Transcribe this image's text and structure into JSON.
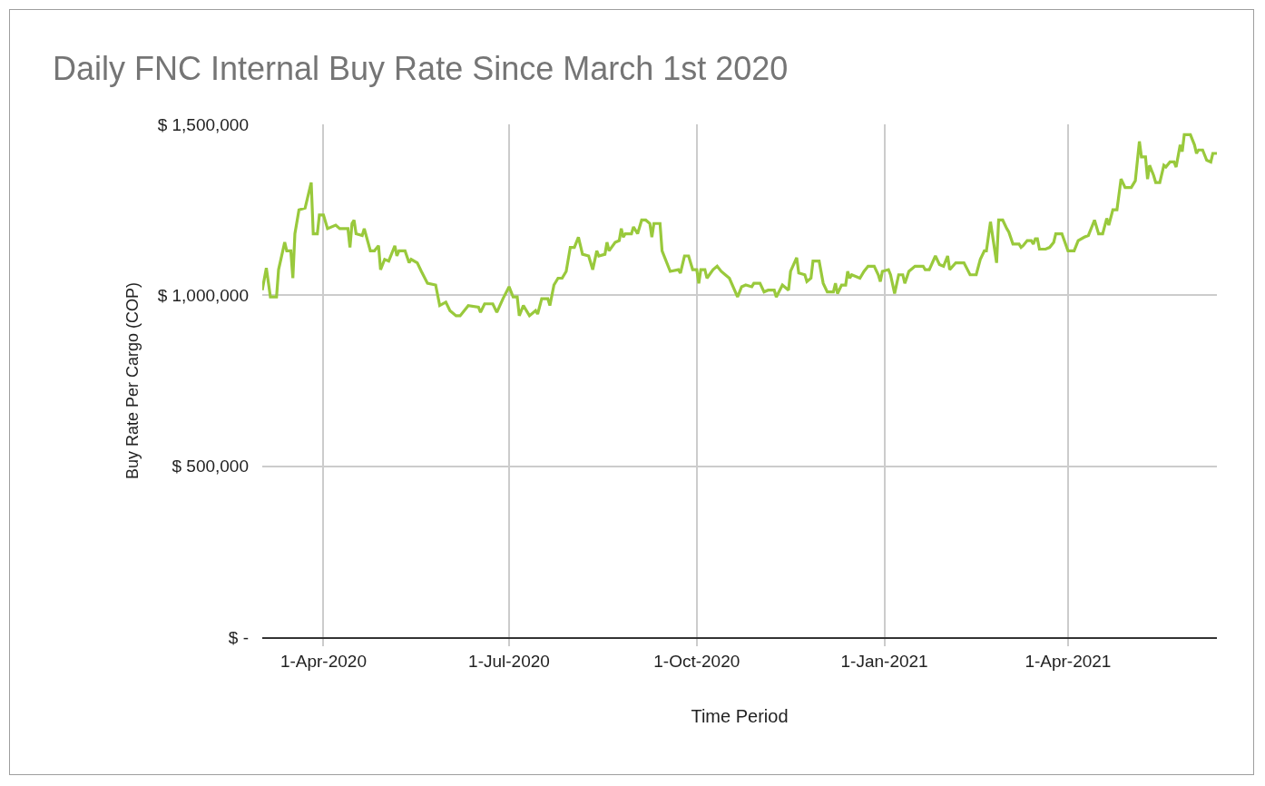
{
  "chart_data": {
    "type": "line",
    "title": "Daily FNC Internal Buy Rate Since March 1st 2020",
    "xlabel": "Time Period",
    "ylabel": "Buy Rate Per Cargo (COP)",
    "x": [
      "2020-03-02",
      "2020-03-04",
      "2020-03-06",
      "2020-03-09",
      "2020-03-10",
      "2020-03-13",
      "2020-03-14",
      "2020-03-16",
      "2020-03-17",
      "2020-03-18",
      "2020-03-20",
      "2020-03-23",
      "2020-03-26",
      "2020-03-27",
      "2020-03-29",
      "2020-03-30",
      "2020-04-01",
      "2020-04-03",
      "2020-04-07",
      "2020-04-09",
      "2020-04-13",
      "2020-04-14",
      "2020-04-15",
      "2020-04-16",
      "2020-04-17",
      "2020-04-20",
      "2020-04-21",
      "2020-04-24",
      "2020-04-26",
      "2020-04-28",
      "2020-04-29",
      "2020-05-01",
      "2020-05-03",
      "2020-05-06",
      "2020-05-07",
      "2020-05-08",
      "2020-05-11",
      "2020-05-13",
      "2020-05-14",
      "2020-05-17",
      "2020-05-19",
      "2020-05-22",
      "2020-05-26",
      "2020-05-28",
      "2020-05-31",
      "2020-06-02",
      "2020-06-05",
      "2020-06-07",
      "2020-06-11",
      "2020-06-16",
      "2020-06-17",
      "2020-06-19",
      "2020-06-23",
      "2020-06-25",
      "2020-06-28",
      "2020-07-01",
      "2020-07-03",
      "2020-07-05",
      "2020-07-06",
      "2020-07-08",
      "2020-07-11",
      "2020-07-14",
      "2020-07-15",
      "2020-07-17",
      "2020-07-20",
      "2020-07-21",
      "2020-07-23",
      "2020-07-25",
      "2020-07-27",
      "2020-07-29",
      "2020-07-31",
      "2020-08-02",
      "2020-08-04",
      "2020-08-06",
      "2020-08-09",
      "2020-08-11",
      "2020-08-13",
      "2020-08-14",
      "2020-08-17",
      "2020-08-18",
      "2020-08-19",
      "2020-08-22",
      "2020-08-24",
      "2020-08-25",
      "2020-08-26",
      "2020-08-27",
      "2020-08-30",
      "2020-08-31",
      "2020-09-02",
      "2020-09-04",
      "2020-09-06",
      "2020-09-08",
      "2020-09-09",
      "2020-09-10",
      "2020-09-13",
      "2020-09-14",
      "2020-09-18",
      "2020-09-22",
      "2020-09-23",
      "2020-09-25",
      "2020-09-27",
      "2020-09-29",
      "2020-10-01",
      "2020-10-02",
      "2020-10-03",
      "2020-10-05",
      "2020-10-06",
      "2020-10-09",
      "2020-10-11",
      "2020-10-13",
      "2020-10-15",
      "2020-10-17",
      "2020-10-21",
      "2020-10-23",
      "2020-10-25",
      "2020-10-28",
      "2020-10-29",
      "2020-11-01",
      "2020-11-03",
      "2020-11-05",
      "2020-11-08",
      "2020-11-09",
      "2020-11-12",
      "2020-11-15",
      "2020-11-16",
      "2020-11-19",
      "2020-11-20",
      "2020-11-23",
      "2020-11-24",
      "2020-11-26",
      "2020-11-27",
      "2020-11-30",
      "2020-12-02",
      "2020-12-04",
      "2020-12-07",
      "2020-12-08",
      "2020-12-09",
      "2020-12-11",
      "2020-12-13",
      "2020-12-14",
      "2020-12-15",
      "2020-12-16",
      "2020-12-20",
      "2020-12-22",
      "2020-12-24",
      "2020-12-27",
      "2020-12-29",
      "2020-12-30",
      "2020-12-31",
      "2021-01-03",
      "2021-01-04",
      "2021-01-06",
      "2021-01-08",
      "2021-01-10",
      "2021-01-11",
      "2021-01-13",
      "2021-01-16",
      "2021-01-20",
      "2021-01-21",
      "2021-01-23",
      "2021-01-26",
      "2021-01-28",
      "2021-01-30",
      "2021-02-01",
      "2021-02-02",
      "2021-02-05",
      "2021-02-09",
      "2021-02-12",
      "2021-02-15",
      "2021-02-17",
      "2021-02-19",
      "2021-02-20",
      "2021-02-22",
      "2021-02-25",
      "2021-02-26",
      "2021-02-28",
      "2021-03-02",
      "2021-03-03",
      "2021-03-05",
      "2021-03-08",
      "2021-03-09",
      "2021-03-10",
      "2021-03-12",
      "2021-03-14",
      "2021-03-15",
      "2021-03-16",
      "2021-03-17",
      "2021-03-18",
      "2021-03-21",
      "2021-03-23",
      "2021-03-25",
      "2021-03-26",
      "2021-03-29",
      "2021-04-01",
      "2021-04-04",
      "2021-04-06",
      "2021-04-09",
      "2021-04-11",
      "2021-04-14",
      "2021-04-16",
      "2021-04-18",
      "2021-04-20",
      "2021-04-21",
      "2021-04-23",
      "2021-04-25",
      "2021-04-27",
      "2021-04-29",
      "2021-05-02",
      "2021-05-04",
      "2021-05-06",
      "2021-05-07",
      "2021-05-09",
      "2021-05-10",
      "2021-05-11",
      "2021-05-13",
      "2021-05-14",
      "2021-05-16",
      "2021-05-18",
      "2021-05-19",
      "2021-05-21",
      "2021-05-23",
      "2021-05-24",
      "2021-05-26",
      "2021-05-27",
      "2021-05-28",
      "2021-05-31",
      "2021-06-02",
      "2021-06-03",
      "2021-06-04",
      "2021-06-06",
      "2021-06-08",
      "2021-06-10",
      "2021-06-11",
      "2021-06-13"
    ],
    "series": [
      {
        "color": "#99c93c",
        "values": [
          1015000,
          1080000,
          995000,
          995000,
          1075000,
          1155000,
          1130000,
          1130000,
          1050000,
          1180000,
          1250000,
          1255000,
          1330000,
          1180000,
          1180000,
          1235000,
          1235000,
          1195000,
          1205000,
          1195000,
          1195000,
          1140000,
          1210000,
          1220000,
          1180000,
          1175000,
          1195000,
          1130000,
          1130000,
          1145000,
          1075000,
          1105000,
          1100000,
          1145000,
          1115000,
          1130000,
          1130000,
          1095000,
          1105000,
          1095000,
          1070000,
          1035000,
          1030000,
          970000,
          980000,
          955000,
          940000,
          940000,
          970000,
          965000,
          950000,
          975000,
          975000,
          950000,
          990000,
          1025000,
          995000,
          995000,
          940000,
          970000,
          940000,
          955000,
          945000,
          990000,
          990000,
          970000,
          1030000,
          1050000,
          1050000,
          1070000,
          1140000,
          1140000,
          1170000,
          1120000,
          1115000,
          1075000,
          1130000,
          1115000,
          1120000,
          1155000,
          1130000,
          1155000,
          1160000,
          1195000,
          1170000,
          1180000,
          1180000,
          1200000,
          1180000,
          1220000,
          1220000,
          1210000,
          1170000,
          1210000,
          1210000,
          1130000,
          1070000,
          1075000,
          1065000,
          1115000,
          1115000,
          1075000,
          1075000,
          1035000,
          1075000,
          1075000,
          1050000,
          1075000,
          1085000,
          1070000,
          1060000,
          1050000,
          995000,
          1025000,
          1030000,
          1025000,
          1035000,
          1035000,
          1010000,
          1015000,
          1015000,
          995000,
          1030000,
          1015000,
          1070000,
          1110000,
          1065000,
          1060000,
          1040000,
          1050000,
          1100000,
          1100000,
          1035000,
          1010000,
          1010000,
          1035000,
          1005000,
          1030000,
          1030000,
          1070000,
          1050000,
          1060000,
          1050000,
          1070000,
          1085000,
          1085000,
          1060000,
          1040000,
          1070000,
          1075000,
          1060000,
          1005000,
          1060000,
          1060000,
          1035000,
          1070000,
          1085000,
          1085000,
          1075000,
          1075000,
          1115000,
          1090000,
          1085000,
          1115000,
          1075000,
          1095000,
          1095000,
          1060000,
          1060000,
          1105000,
          1130000,
          1130000,
          1215000,
          1095000,
          1220000,
          1220000,
          1195000,
          1185000,
          1150000,
          1150000,
          1140000,
          1145000,
          1160000,
          1160000,
          1150000,
          1165000,
          1165000,
          1135000,
          1135000,
          1140000,
          1155000,
          1180000,
          1180000,
          1130000,
          1130000,
          1160000,
          1170000,
          1175000,
          1220000,
          1180000,
          1180000,
          1225000,
          1205000,
          1250000,
          1250000,
          1340000,
          1315000,
          1315000,
          1335000,
          1450000,
          1405000,
          1405000,
          1340000,
          1380000,
          1350000,
          1330000,
          1330000,
          1380000,
          1375000,
          1390000,
          1390000,
          1375000,
          1440000,
          1420000,
          1470000,
          1470000,
          1440000,
          1415000,
          1425000,
          1425000,
          1395000,
          1390000,
          1415000,
          1415000
        ]
      }
    ],
    "xlim": [
      "2020-03-02",
      "2021-06-13"
    ],
    "xticks": [
      {
        "value": "2020-04-01",
        "label": "1-Apr-2020"
      },
      {
        "value": "2020-07-01",
        "label": "1-Jul-2020"
      },
      {
        "value": "2020-10-01",
        "label": "1-Oct-2020"
      },
      {
        "value": "2021-01-01",
        "label": "1-Jan-2021"
      },
      {
        "value": "2021-04-01",
        "label": "1-Apr-2021"
      }
    ],
    "ylim": [
      0,
      1500000
    ],
    "yticks": [
      {
        "value": 0,
        "label": "$ -"
      },
      {
        "value": 500000,
        "label": "$ 500,000"
      },
      {
        "value": 1000000,
        "label": "$ 1,000,000"
      },
      {
        "value": 1500000,
        "label": "$ 1,500,000"
      }
    ],
    "grid": true,
    "marker": "none",
    "line_style": "solid"
  }
}
